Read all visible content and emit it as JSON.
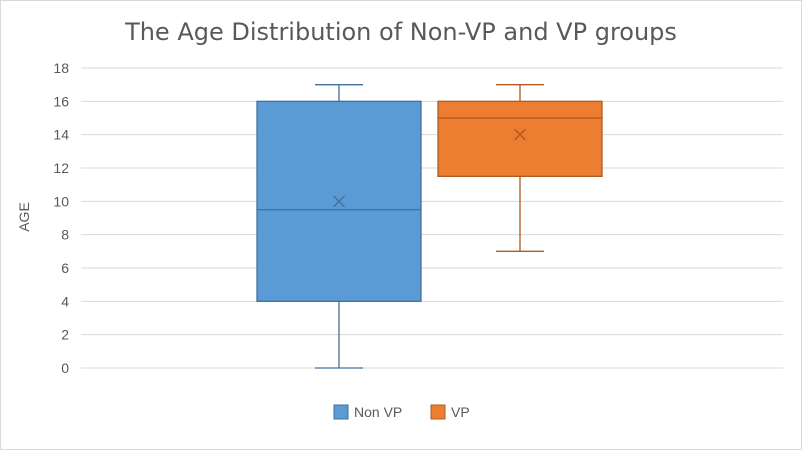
{
  "chart_data": {
    "type": "box",
    "title": "The Age Distribution of Non-VP and VP groups",
    "xlabel": "",
    "ylabel": "AGE",
    "ylim": [
      0,
      18
    ],
    "yticks": [
      0,
      2,
      4,
      6,
      8,
      10,
      12,
      14,
      16,
      18
    ],
    "grid": true,
    "legend_position": "bottom",
    "series": [
      {
        "name": "Non VP",
        "color": "#5b9bd5",
        "stroke": "#41719c",
        "min": 0,
        "q1": 4,
        "median": 9.5,
        "q3": 16,
        "max": 17,
        "mean": 10
      },
      {
        "name": "VP",
        "color": "#ed7d31",
        "stroke": "#ae5a21",
        "min": 7,
        "q1": 11.5,
        "median": 15,
        "q3": 16,
        "max": 17,
        "mean": 14
      }
    ]
  }
}
